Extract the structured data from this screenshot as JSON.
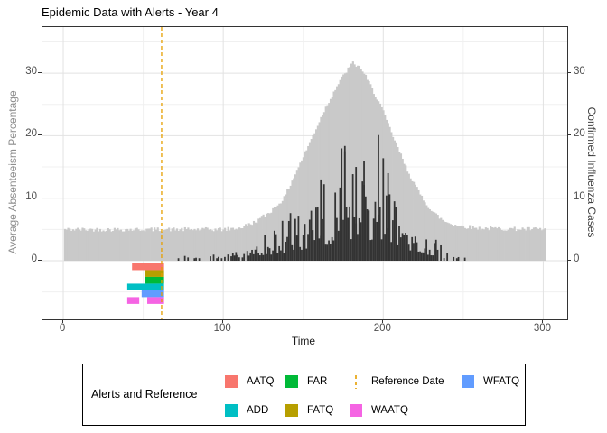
{
  "title": "Epidemic Data with Alerts - Year 4",
  "axes": {
    "x": {
      "label": "Time",
      "ticks": [
        0,
        100,
        200,
        300
      ],
      "minor_ticks": [
        50,
        150,
        250
      ],
      "range": [
        -13,
        315
      ]
    },
    "y_left": {
      "label": "Average Absenteeism Percentage",
      "ticks": [
        0,
        10,
        20,
        30
      ],
      "minor_ticks": [
        -5,
        5,
        15,
        25,
        35
      ],
      "range": [
        -9.4,
        37.4
      ]
    },
    "y_right": {
      "label": "Confirmed Influenza Cases",
      "ticks": [
        0,
        10,
        20,
        30
      ]
    }
  },
  "legend": {
    "title": "Alerts and Reference",
    "items": [
      {
        "label": "AATQ",
        "color": "#F8766D",
        "type": "square"
      },
      {
        "label": "ADD",
        "color": "#00BFC4",
        "type": "square"
      },
      {
        "label": "FAR",
        "color": "#00BA38",
        "type": "square"
      },
      {
        "label": "FATQ",
        "color": "#B79F00",
        "type": "square"
      },
      {
        "label": "Reference Date",
        "color": "#E69F00",
        "type": "dashed-line"
      },
      {
        "label": "WAATQ",
        "color": "#F564E3",
        "type": "square"
      },
      {
        "label": "WFATQ",
        "color": "#619CFF",
        "type": "square"
      }
    ]
  },
  "chart_data": {
    "type": "composite",
    "title": "Epidemic Data with Alerts - Year 4",
    "xlabel": "Time",
    "ylabel_left": "Average Absenteeism Percentage",
    "ylabel_right": "Confirmed Influenza Cases",
    "x_domain": [
      1,
      301
    ],
    "reference_date": 61.5,
    "series": [
      {
        "name": "Average Absenteeism Percentage",
        "type": "area",
        "color": "#c9c9c9",
        "baseline": 5,
        "noise": 0.35,
        "envelope": [
          [
            1,
            5
          ],
          [
            100,
            5
          ],
          [
            110,
            5.2
          ],
          [
            120,
            6.2
          ],
          [
            130,
            8
          ],
          [
            138,
            10
          ],
          [
            147,
            15
          ],
          [
            156,
            20
          ],
          [
            163,
            24
          ],
          [
            170,
            27.5
          ],
          [
            176,
            30
          ],
          [
            181,
            31.6
          ],
          [
            186,
            30.8
          ],
          [
            192,
            28
          ],
          [
            198,
            25
          ],
          [
            205,
            20.5
          ],
          [
            214,
            15
          ],
          [
            222,
            11
          ],
          [
            230,
            8
          ],
          [
            238,
            6.3
          ],
          [
            247,
            5.6
          ],
          [
            260,
            5.2
          ],
          [
            301,
            5
          ]
        ]
      },
      {
        "name": "Confirmed Influenza Cases",
        "type": "bar",
        "color": "#333333",
        "envelope": [
          [
            60,
            0
          ],
          [
            68,
            0.4
          ],
          [
            80,
            0.5
          ],
          [
            95,
            0.8
          ],
          [
            105,
            1.2
          ],
          [
            115,
            1.8
          ],
          [
            125,
            2.6
          ],
          [
            135,
            3.5
          ],
          [
            145,
            5
          ],
          [
            155,
            6.5
          ],
          [
            165,
            8.5
          ],
          [
            175,
            10
          ],
          [
            185,
            10.5
          ],
          [
            197,
            11
          ],
          [
            205,
            8.5
          ],
          [
            212,
            6.5
          ],
          [
            220,
            4.5
          ],
          [
            228,
            3
          ],
          [
            236,
            1.5
          ],
          [
            244,
            0.8
          ],
          [
            252,
            0.5
          ],
          [
            262,
            0.3
          ],
          [
            268,
            0
          ]
        ],
        "spikes": [
          [
            161,
            13
          ],
          [
            176,
            17.5
          ],
          [
            183,
            15
          ],
          [
            188,
            16
          ],
          [
            197,
            20.1
          ],
          [
            203,
            14
          ]
        ]
      }
    ],
    "alerts": [
      {
        "label": "AATQ",
        "color": "#F8766D",
        "row": 1,
        "segments": [
          [
            43,
            63
          ]
        ]
      },
      {
        "label": "FATQ",
        "color": "#B79F00",
        "row": 2,
        "segments": [
          [
            51,
            63
          ]
        ]
      },
      {
        "label": "FAR",
        "color": "#00BA38",
        "row": 3,
        "segments": [
          [
            51,
            63
          ]
        ]
      },
      {
        "label": "ADD",
        "color": "#00BFC4",
        "row": 4,
        "segments": [
          [
            40,
            63
          ]
        ]
      },
      {
        "label": "WFATQ",
        "color": "#619CFF",
        "row": 5,
        "segments": [
          [
            49,
            63
          ]
        ]
      },
      {
        "label": "WAATQ",
        "color": "#F564E3",
        "row": 6,
        "segments": [
          [
            40,
            47.5
          ],
          [
            52.5,
            63
          ]
        ]
      }
    ],
    "grid": true,
    "legend_position": "bottom"
  },
  "colors": {
    "reference_line": "#E69F00",
    "grid_major": "#e2e2e2",
    "grid_minor": "#f0f0f0",
    "panel_border": "#333333",
    "tick_text": "#4d4d4d"
  }
}
